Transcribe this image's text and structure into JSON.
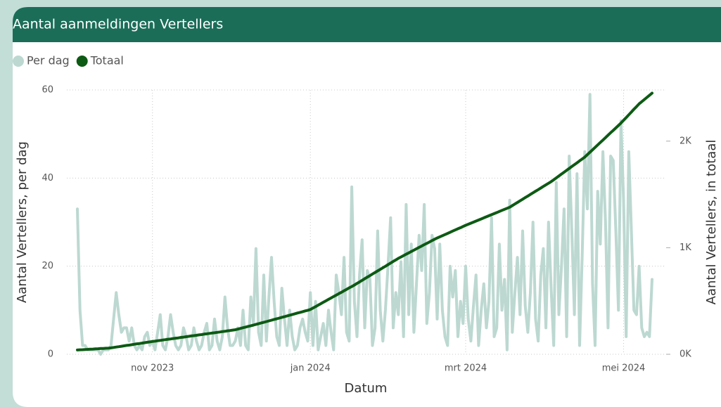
{
  "chart_data": {
    "type": "line",
    "title": "Aantal aanmeldingen Vertellers",
    "xlabel": "Datum",
    "ylabel": "Aantal Vertellers, per dag",
    "y2label": "Aantal Vertellers, in totaal",
    "categories": [
      null,
      null,
      null,
      null,
      null,
      null,
      null,
      null,
      null,
      null,
      null,
      null,
      null,
      null,
      null,
      null,
      null,
      null,
      null,
      null,
      null,
      null,
      null,
      null,
      null,
      null,
      null,
      null,
      null,
      null,
      null,
      null,
      null,
      null,
      null,
      null,
      null,
      null,
      null,
      null,
      null,
      null,
      null,
      null,
      null,
      null,
      null,
      null,
      null,
      null,
      null,
      null,
      null,
      null,
      null,
      null,
      null,
      null,
      null,
      null,
      null,
      null,
      null,
      null,
      null,
      null,
      null,
      null,
      null,
      null,
      null,
      null,
      null,
      null,
      null,
      null,
      null,
      null,
      null,
      null,
      null,
      null,
      null,
      null,
      null,
      null,
      null,
      null,
      null,
      null,
      null,
      null,
      null,
      null,
      null,
      null,
      null,
      null,
      null,
      null,
      null,
      null,
      null,
      null,
      null,
      null,
      null,
      null,
      null,
      null,
      null,
      null,
      null,
      null,
      null,
      null,
      null,
      null,
      null,
      null,
      null,
      null,
      null,
      null,
      null,
      null,
      null,
      null,
      null,
      null,
      null,
      null,
      null,
      null,
      null,
      null,
      null,
      null,
      null,
      null,
      null,
      null,
      null,
      null,
      null,
      null,
      null,
      null,
      null,
      null,
      null,
      null,
      null,
      null,
      null,
      null,
      null,
      null,
      null,
      null,
      null,
      null,
      null,
      null,
      null,
      null,
      null,
      null,
      null,
      null,
      null,
      null,
      null,
      null,
      null,
      null,
      null,
      null,
      null,
      null,
      null,
      null,
      null,
      null,
      null,
      null,
      null,
      null,
      null,
      null,
      null,
      null,
      null,
      null,
      null,
      null,
      null,
      null,
      null,
      null,
      null,
      null,
      null,
      null,
      null,
      null,
      null,
      null,
      null,
      null,
      null,
      null,
      null,
      null,
      null,
      null,
      null,
      null,
      null,
      null,
      null,
      null,
      null
    ],
    "xticks": [
      {
        "value": 29,
        "label": "nov 2023"
      },
      {
        "value": 90,
        "label": "jan 2024"
      },
      {
        "value": 150,
        "label": "mrt 2024"
      },
      {
        "value": 211,
        "label": "mei 2024"
      }
    ],
    "ylim": [
      0,
      60
    ],
    "yticks": [
      0,
      20,
      40,
      60
    ],
    "y2lim": [
      0,
      2480
    ],
    "y2ticks": [
      {
        "value": 0,
        "label": "0K"
      },
      {
        "value": 1000,
        "label": "1K"
      },
      {
        "value": 2000,
        "label": "2K"
      }
    ],
    "grid": true,
    "legend": "top-left",
    "series": [
      {
        "name": "Per dag",
        "color": "#bcd8d1",
        "values": [
          33,
          10,
          2,
          2,
          1,
          1,
          1,
          1,
          1,
          0,
          1,
          1,
          1,
          2,
          8,
          14,
          9,
          5,
          6,
          6,
          3,
          6,
          2,
          1,
          2,
          1,
          4,
          5,
          2,
          3,
          1,
          5,
          9,
          2,
          1,
          4,
          9,
          5,
          2,
          1,
          2,
          6,
          4,
          1,
          2,
          6,
          3,
          1,
          2,
          5,
          7,
          1,
          2,
          8,
          3,
          1,
          4,
          13,
          6,
          2,
          2,
          3,
          6,
          2,
          10,
          2,
          1,
          13,
          7,
          24,
          5,
          2,
          18,
          3,
          13,
          22,
          12,
          4,
          2,
          15,
          8,
          2,
          10,
          4,
          1,
          2,
          6,
          8,
          5,
          3,
          14,
          2,
          12,
          1,
          4,
          7,
          2,
          10,
          5,
          1,
          18,
          14,
          9,
          22,
          5,
          3,
          38,
          12,
          4,
          18,
          26,
          6,
          19,
          17,
          2,
          6,
          28,
          10,
          3,
          10,
          20,
          31,
          6,
          14,
          9,
          21,
          4,
          34,
          9,
          25,
          5,
          16,
          27,
          19,
          34,
          7,
          14,
          27,
          24,
          8,
          25,
          10,
          4,
          2,
          20,
          13,
          19,
          4,
          12,
          7,
          20,
          8,
          3,
          11,
          18,
          2,
          10,
          16,
          6,
          12,
          31,
          4,
          6,
          25,
          10,
          17,
          1,
          35,
          5,
          14,
          22,
          9,
          28,
          11,
          5,
          14,
          30,
          8,
          3,
          18,
          24,
          6,
          30,
          15,
          2,
          39,
          9,
          20,
          33,
          4,
          45,
          28,
          9,
          41,
          2,
          22,
          46,
          33,
          59,
          16,
          2,
          37,
          25,
          46,
          30,
          6,
          45,
          44,
          28,
          10,
          53,
          35,
          4,
          46,
          28,
          10,
          9,
          20,
          6,
          4,
          5,
          4,
          17
        ]
      },
      {
        "name": "Totaal",
        "color": "#0d5a14",
        "axis": "y2",
        "values": [
          40,
          42,
          43,
          45,
          46,
          48,
          49,
          51,
          52,
          54,
          55,
          57,
          58,
          60,
          64,
          68,
          71,
          75,
          79,
          83,
          86,
          90,
          94,
          98,
          101,
          105,
          109,
          113,
          116,
          120,
          123,
          127,
          130,
          134,
          137,
          141,
          144,
          148,
          151,
          154,
          158,
          161,
          165,
          168,
          172,
          175,
          178,
          182,
          185,
          189,
          192,
          196,
          199,
          202,
          206,
          209,
          213,
          216,
          220,
          223,
          227,
          230,
          236,
          243,
          249,
          255,
          262,
          268,
          274,
          281,
          287,
          294,
          300,
          307,
          313,
          320,
          327,
          333,
          340,
          347,
          353,
          360,
          367,
          373,
          380,
          387,
          393,
          400,
          407,
          413,
          420,
          434,
          447,
          461,
          474,
          488,
          501,
          515,
          528,
          542,
          555,
          569,
          582,
          596,
          609,
          623,
          636,
          650,
          665,
          679,
          694,
          709,
          724,
          738,
          753,
          768,
          782,
          797,
          812,
          826,
          841,
          856,
          871,
          885,
          900,
          913,
          926,
          939,
          951,
          964,
          977,
          990,
          1003,
          1016,
          1029,
          1041,
          1054,
          1067,
          1080,
          1091,
          1102,
          1113,
          1123,
          1134,
          1145,
          1156,
          1167,
          1178,
          1188,
          1199,
          1210,
          1220,
          1230,
          1240,
          1250,
          1260,
          1270,
          1280,
          1290,
          1300,
          1310,
          1320,
          1330,
          1340,
          1350,
          1360,
          1370,
          1380,
          1395,
          1410,
          1425,
          1440,
          1455,
          1470,
          1485,
          1500,
          1515,
          1530,
          1545,
          1560,
          1575,
          1590,
          1605,
          1620,
          1638,
          1655,
          1673,
          1691,
          1708,
          1726,
          1744,
          1762,
          1779,
          1797,
          1815,
          1832,
          1850,
          1873,
          1896,
          1919,
          1941,
          1964,
          1987,
          2010,
          2033,
          2056,
          2079,
          2101,
          2124,
          2147,
          2170,
          2196,
          2221,
          2247,
          2273,
          2299,
          2324,
          2350,
          2370,
          2390,
          2410,
          2430,
          2450
        ]
      }
    ]
  }
}
